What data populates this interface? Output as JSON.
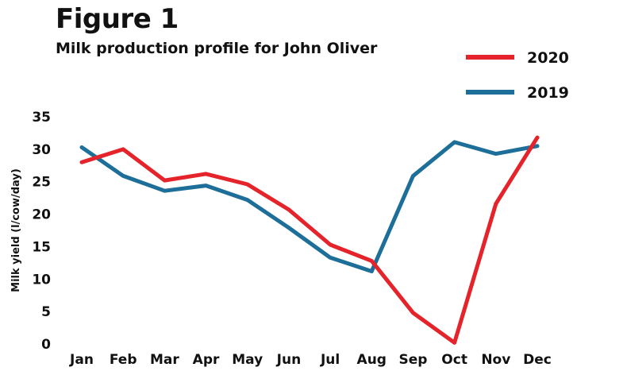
{
  "figure": {
    "title": "Figure 1",
    "subtitle": "Milk production profile for John Oliver"
  },
  "colors": {
    "series_2020": "#e4232a",
    "series_2019": "#1d6f99"
  },
  "chart_data": {
    "type": "line",
    "title": "Milk production profile for John Oliver",
    "xlabel": "",
    "ylabel": "Milk yield (l/cow/day)",
    "ylim": [
      0,
      35
    ],
    "yticks": [
      0,
      5,
      10,
      15,
      20,
      25,
      30,
      35
    ],
    "grid": false,
    "legend_position": "top-right",
    "categories": [
      "Jan",
      "Feb",
      "Mar",
      "Apr",
      "May",
      "Jun",
      "Jul",
      "Aug",
      "Sep",
      "Oct",
      "Nov",
      "Dec"
    ],
    "series": [
      {
        "name": "2020",
        "color": "#e4232a",
        "values": [
          28,
          30,
          25.2,
          26.2,
          24.6,
          20.7,
          15.3,
          12.8,
          4.8,
          0.2,
          21.6,
          31.8
        ]
      },
      {
        "name": "2019",
        "color": "#1d6f99",
        "values": [
          30.3,
          25.9,
          23.6,
          24.4,
          22.2,
          17.9,
          13.3,
          11.2,
          25.9,
          31.1,
          29.3,
          30.5
        ]
      }
    ]
  }
}
